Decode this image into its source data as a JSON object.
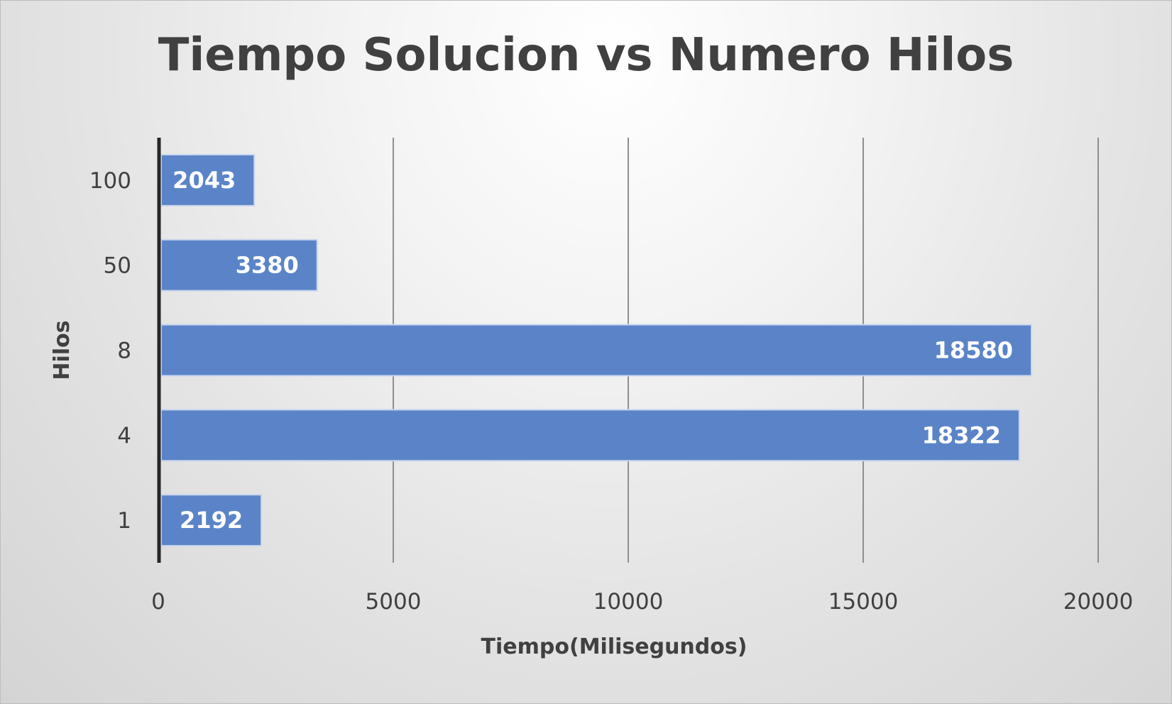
{
  "chart_data": {
    "type": "bar",
    "orientation": "horizontal",
    "title": "Tiempo Solucion vs Numero Hilos",
    "xlabel": "Tiempo(Milisegundos)",
    "ylabel": "Hilos",
    "categories": [
      "100",
      "50",
      "8",
      "4",
      "1"
    ],
    "values": [
      2043,
      3380,
      18580,
      18322,
      2192
    ],
    "xlim": [
      0,
      20000
    ],
    "xticks": [
      0,
      5000,
      10000,
      15000,
      20000
    ],
    "xtick_labels": [
      "0",
      "5000",
      "10000",
      "15000",
      "20000"
    ],
    "grid": "vertical",
    "legend": "none",
    "data_labels": true,
    "bar_color": "#5b84c8"
  }
}
